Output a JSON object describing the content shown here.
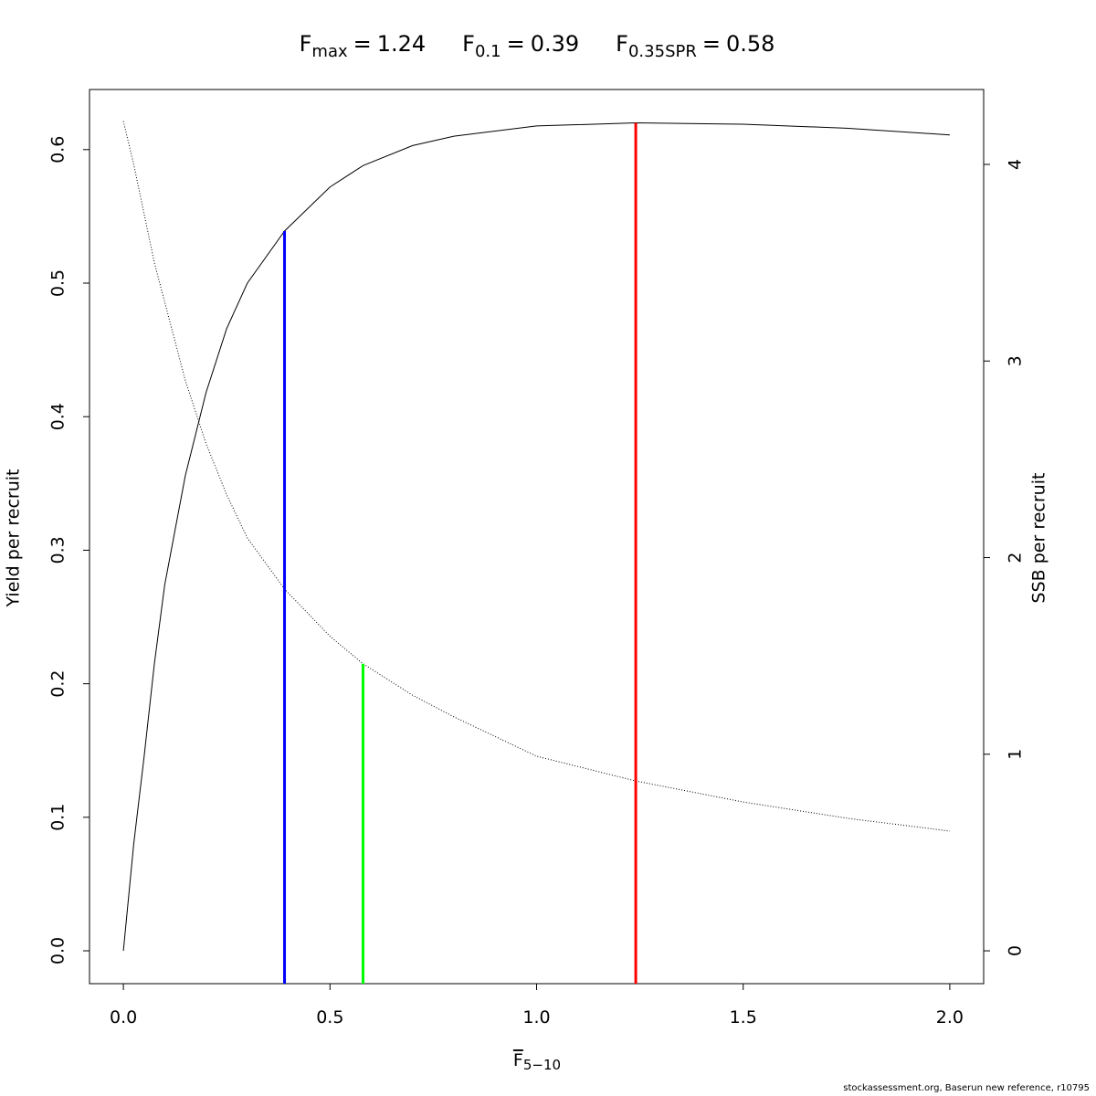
{
  "chart_data": {
    "type": "line",
    "reference_lines": [
      {
        "symbol": "F",
        "subscript": "max",
        "value": 1.24,
        "color": "#ff0000",
        "axis": "y"
      },
      {
        "symbol": "F",
        "subscript": "0.1",
        "value": 0.39,
        "color": "#0000ff",
        "axis": "y"
      },
      {
        "symbol": "F",
        "subscript": "0.35SPR",
        "value": 0.58,
        "color": "#00ff00",
        "axis": "y2"
      }
    ],
    "equals": "=",
    "xlabel": {
      "text": "F",
      "subscript": "5−10"
    },
    "ylabel": "Yield per recruit",
    "y2label": "SSB per recruit",
    "footer": "stockassessment.org, Baserun  new  reference, r10795",
    "x": [
      0,
      0.025,
      0.05,
      0.075,
      0.1,
      0.15,
      0.2,
      0.25,
      0.3,
      0.39,
      0.5,
      0.58,
      0.7,
      0.8,
      1.0,
      1.24,
      1.5,
      1.75,
      2.0
    ],
    "series": [
      {
        "color": "#000000",
        "line_style": "solid",
        "values": [
          0,
          0.08,
          0.145,
          0.215,
          0.274,
          0.356,
          0.418,
          0.466,
          0.5,
          0.539,
          0.572,
          0.588,
          0.603,
          0.61,
          0.6177,
          0.62,
          0.619,
          0.616,
          0.611
        ]
      },
      {
        "color": "#000000",
        "line_style": "dotted",
        "axis": "y2",
        "values": [
          4.22,
          4.0,
          3.75,
          3.5,
          3.3,
          2.9,
          2.58,
          2.32,
          2.1,
          1.84,
          1.6,
          1.46,
          1.3,
          1.19,
          0.99,
          0.864,
          0.757,
          0.675,
          0.609
        ]
      }
    ],
    "xlim": [
      -0.082,
      2.082
    ],
    "xticks": [
      {
        "value": 0,
        "label": "0.0"
      },
      0.5,
      {
        "value": 1,
        "label": "1.0"
      },
      1.5,
      {
        "value": 2,
        "label": "2.0"
      }
    ],
    "ylim": [
      -0.0246,
      0.645
    ],
    "yticks": [
      {
        "value": 0,
        "label": "0.0"
      },
      0.1,
      0.2,
      0.3,
      0.4,
      0.5,
      0.6
    ],
    "y2lim": [
      -0.167,
      4.381
    ],
    "y2ticks": [
      0,
      1,
      2,
      3,
      4
    ]
  }
}
